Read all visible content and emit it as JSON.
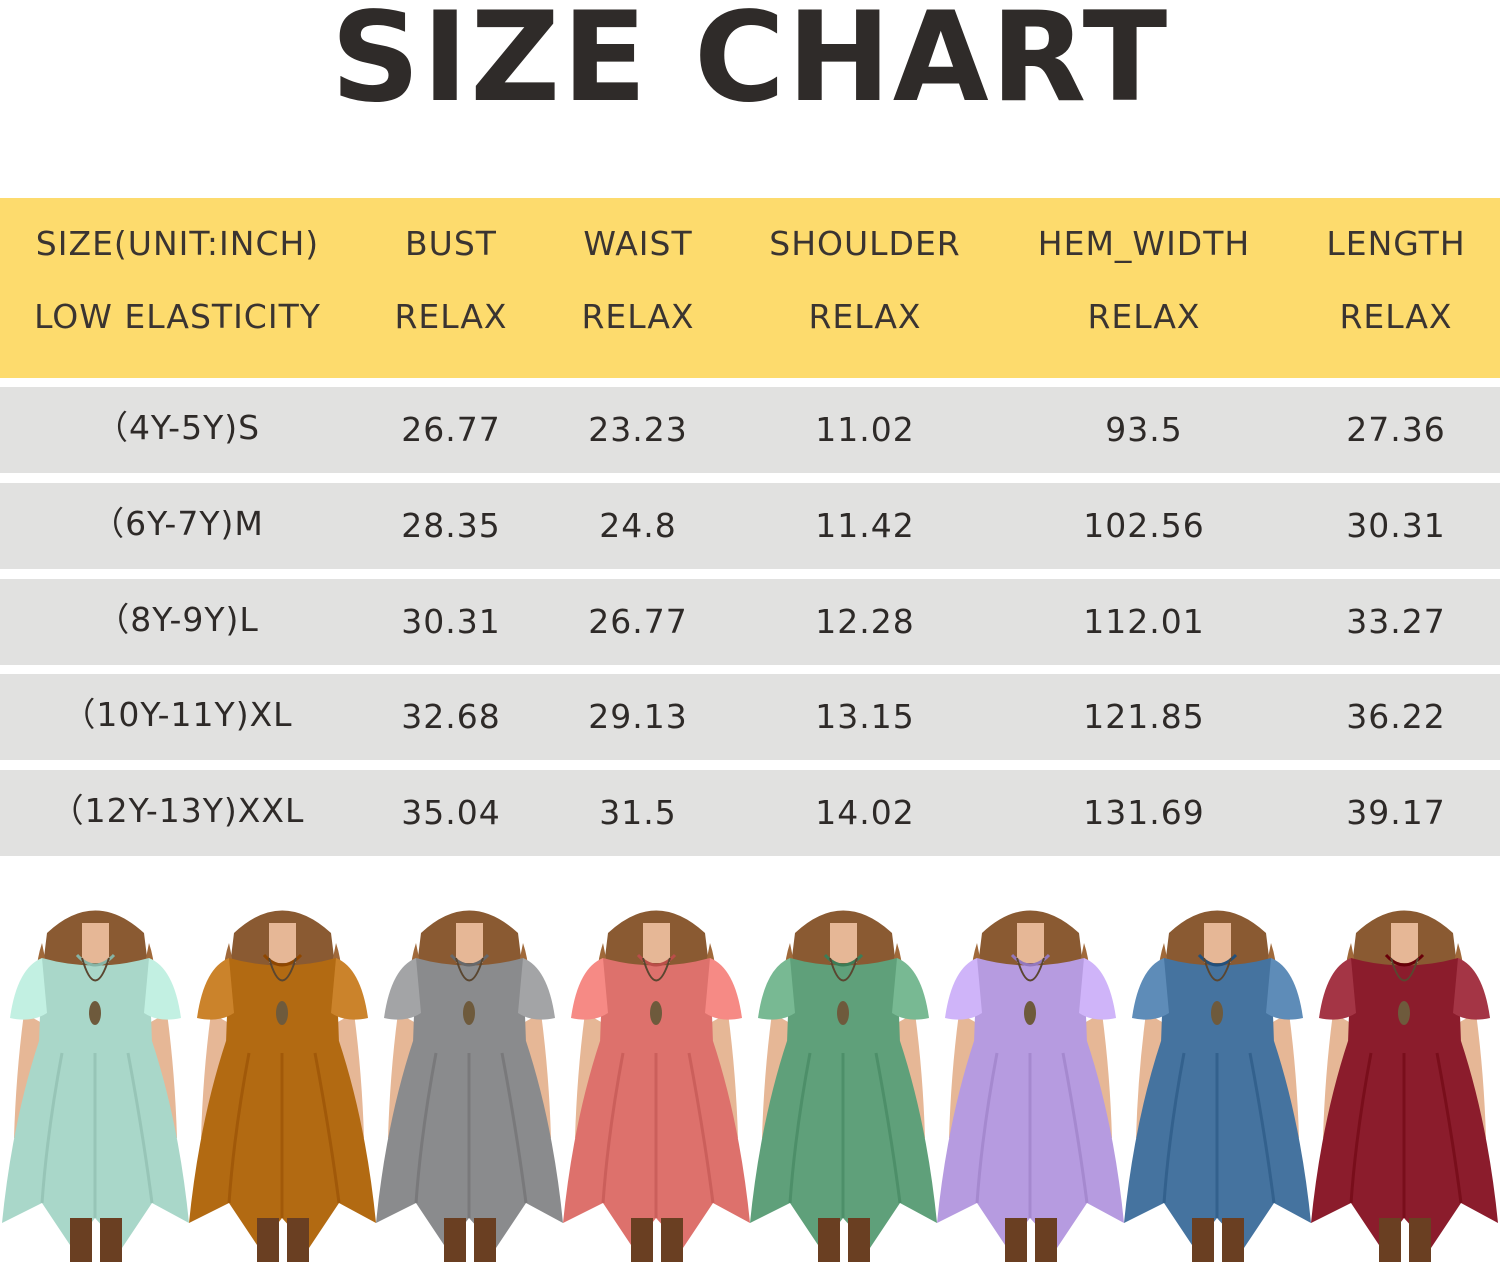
{
  "title": "SIZE CHART",
  "colors": {
    "header_bg": "#fddb6d",
    "row_bg": "#e1e1e0",
    "text": "#2e2a28"
  },
  "header": {
    "row1": [
      "SIZE(UNIT:INCH)",
      "BUST",
      "WAIST",
      "SHOULDER",
      "HEM_WIDTH",
      "LENGTH"
    ],
    "row2": [
      "LOW ELASTICITY",
      "RELAX",
      "RELAX",
      "RELAX",
      "RELAX",
      "RELAX"
    ]
  },
  "rows": [
    [
      "（4Y-5Y)S",
      "26.77",
      "23.23",
      "11.02",
      "93.5",
      "27.36"
    ],
    [
      "（6Y-7Y)M",
      "28.35",
      "24.8",
      "11.42",
      "102.56",
      "30.31"
    ],
    [
      "（8Y-9Y)L",
      "30.31",
      "26.77",
      "12.28",
      "112.01",
      "33.27"
    ],
    [
      "（10Y-11Y)XL",
      "32.68",
      "29.13",
      "13.15",
      "121.85",
      "36.22"
    ],
    [
      "（12Y-13Y)XXL",
      "35.04",
      "31.5",
      "14.02",
      "131.69",
      "39.17"
    ]
  ],
  "dress_colors": [
    "#a9d7c9",
    "#b26a12",
    "#8a8b8d",
    "#dd716c",
    "#5fa07a",
    "#b69be0",
    "#45739f",
    "#8b1c2c"
  ]
}
